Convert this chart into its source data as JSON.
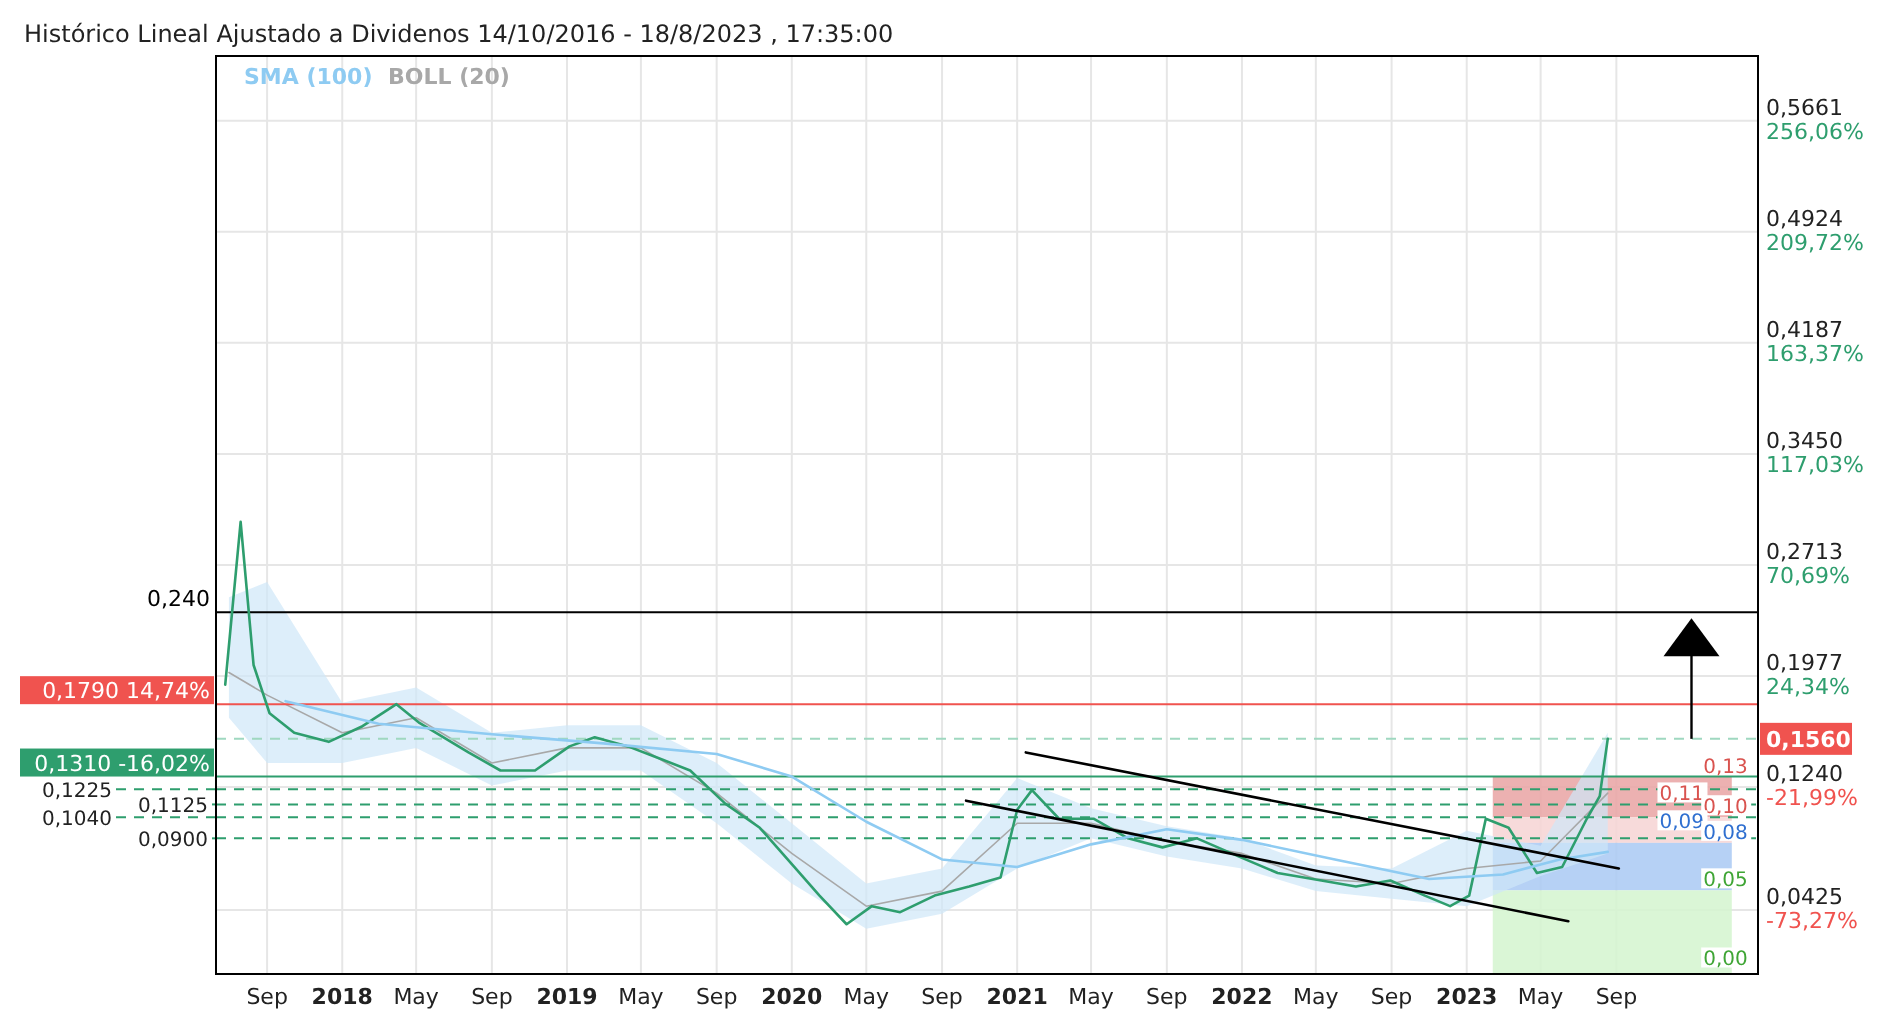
{
  "chart_data": {
    "type": "line",
    "title": "Histórico Lineal Ajustado a Dividenos 14/10/2016 - 18/8/2023 , 17:35:00",
    "legend": "top left",
    "grid": true,
    "xlim": [
      "2017-06-10",
      "2024-04-18"
    ],
    "xticks": [
      {
        "value": "2017-09-01",
        "label": "Sep"
      },
      {
        "value": "2018-01-01",
        "label": "2018"
      },
      {
        "value": "2018-05-01",
        "label": "May"
      },
      {
        "value": "2018-09-01",
        "label": "Sep"
      },
      {
        "value": "2019-01-01",
        "label": "2019"
      },
      {
        "value": "2019-05-01",
        "label": "May"
      },
      {
        "value": "2019-09-01",
        "label": "Sep"
      },
      {
        "value": "2020-01-01",
        "label": "2020"
      },
      {
        "value": "2020-05-01",
        "label": "May"
      },
      {
        "value": "2020-09-01",
        "label": "Sep"
      },
      {
        "value": "2021-01-01",
        "label": "2021"
      },
      {
        "value": "2021-05-01",
        "label": "May"
      },
      {
        "value": "2021-09-01",
        "label": "Sep"
      },
      {
        "value": "2022-01-01",
        "label": "2022"
      },
      {
        "value": "2022-05-01",
        "label": "May"
      },
      {
        "value": "2022-09-01",
        "label": "Sep"
      },
      {
        "value": "2023-01-01",
        "label": "2023"
      },
      {
        "value": "2023-05-01",
        "label": "May"
      },
      {
        "value": "2023-09-01",
        "label": "Sep"
      }
    ],
    "ylim": [
      0,
      0.609
    ],
    "yticks": [
      {
        "value": 0.0425,
        "label": "0,0425"
      },
      {
        "value": 0.124,
        "label": "0,1240"
      },
      {
        "value": 0.1977,
        "label": "0,1977"
      },
      {
        "value": 0.2713,
        "label": "0,2713"
      },
      {
        "value": 0.345,
        "label": "0,3450"
      },
      {
        "value": 0.4187,
        "label": "0,4187"
      },
      {
        "value": 0.4924,
        "label": "0,4924"
      },
      {
        "value": 0.5661,
        "label": "0,5661"
      }
    ],
    "y2lim": [
      -100,
      283.05
    ],
    "y2ticks": [
      {
        "value": -73.27,
        "label": "-73,27%"
      },
      {
        "value": -21.99,
        "label": "-21,99%"
      },
      {
        "value": 24.34,
        "label": "24,34%"
      },
      {
        "value": 70.69,
        "label": "70,69%"
      },
      {
        "value": 117.03,
        "label": "117,03%"
      },
      {
        "value": 163.37,
        "label": "163,37%"
      },
      {
        "value": 209.72,
        "label": "209,72%"
      },
      {
        "value": 256.06,
        "label": "256,06%"
      }
    ],
    "series": [
      {
        "color": "#2e9e6e",
        "x": [
          "2017-06-25",
          "2017-07-20",
          "2017-08-10",
          "2017-09-05",
          "2017-10-15",
          "2017-12-10",
          "2018-02-01",
          "2018-03-30",
          "2018-05-05",
          "2018-07-25",
          "2018-09-15",
          "2018-11-10",
          "2019-01-05",
          "2019-02-15",
          "2019-04-10",
          "2019-05-25",
          "2019-07-20",
          "2019-09-15",
          "2019-11-10",
          "2020-01-05",
          "2020-02-15",
          "2020-03-30",
          "2020-05-10",
          "2020-06-25",
          "2020-08-20",
          "2020-10-15",
          "2020-12-05",
          "2021-01-01",
          "2021-01-25",
          "2021-03-10",
          "2021-05-05",
          "2021-06-30",
          "2021-08-25",
          "2021-10-20",
          "2022-01-01",
          "2022-02-28",
          "2022-05-10",
          "2022-07-05",
          "2022-08-30",
          "2022-10-25",
          "2022-12-05",
          "2023-01-05",
          "2023-02-01",
          "2023-03-10",
          "2023-04-25",
          "2023-06-05",
          "2023-07-15",
          "2023-08-05",
          "2023-08-18"
        ],
        "values": [
          0.192,
          0.3,
          0.205,
          0.173,
          0.16,
          0.154,
          0.164,
          0.179,
          0.167,
          0.147,
          0.135,
          0.135,
          0.151,
          0.157,
          0.151,
          0.144,
          0.135,
          0.113,
          0.097,
          0.071,
          0.052,
          0.033,
          0.045,
          0.041,
          0.052,
          0.058,
          0.064,
          0.109,
          0.122,
          0.103,
          0.103,
          0.09,
          0.084,
          0.09,
          0.077,
          0.067,
          0.062,
          0.058,
          0.062,
          0.052,
          0.045,
          0.052,
          0.103,
          0.097,
          0.067,
          0.071,
          0.103,
          0.118,
          0.156
        ]
      },
      {
        "type": "line",
        "name": "SMA (100)",
        "color": "#8ecbf2",
        "x": [
          "2017-10-01",
          "2018-03-01",
          "2018-09-01",
          "2019-03-01",
          "2019-09-01",
          "2020-01-01",
          "2020-05-01",
          "2020-09-01",
          "2021-01-01",
          "2021-05-01",
          "2021-09-01",
          "2022-01-01",
          "2022-06-01",
          "2022-11-01",
          "2023-03-01",
          "2023-06-01",
          "2023-08-18"
        ],
        "values": [
          0.181,
          0.166,
          0.159,
          0.153,
          0.146,
          0.131,
          0.101,
          0.076,
          0.071,
          0.086,
          0.096,
          0.089,
          0.076,
          0.063,
          0.066,
          0.076,
          0.081
        ]
      },
      {
        "type": "line",
        "name": "BOLL (20)",
        "color": "#a8a8a8",
        "x": [
          "2017-07-01",
          "2017-09-01",
          "2018-01-01",
          "2018-05-01",
          "2018-09-01",
          "2019-01-01",
          "2019-05-01",
          "2019-09-01",
          "2020-01-01",
          "2020-05-01",
          "2020-09-01",
          "2021-01-01",
          "2021-05-01",
          "2021-09-01",
          "2022-01-01",
          "2022-05-01",
          "2022-09-01",
          "2023-01-01",
          "2023-05-01",
          "2023-08-18"
        ],
        "values": [
          0.2,
          0.185,
          0.16,
          0.17,
          0.14,
          0.15,
          0.15,
          0.12,
          0.08,
          0.045,
          0.055,
          0.1,
          0.1,
          0.088,
          0.08,
          0.063,
          0.06,
          0.07,
          0.075,
          0.12
        ],
        "lower": [
          0.17,
          0.14,
          0.14,
          0.15,
          0.125,
          0.135,
          0.135,
          0.1,
          0.06,
          0.03,
          0.04,
          0.07,
          0.09,
          0.078,
          0.07,
          0.055,
          0.05,
          0.045,
          0.065,
          0.08
        ],
        "upper": [
          0.25,
          0.26,
          0.18,
          0.19,
          0.16,
          0.165,
          0.165,
          0.14,
          0.1,
          0.06,
          0.07,
          0.13,
          0.11,
          0.098,
          0.09,
          0.072,
          0.07,
          0.095,
          0.085,
          0.16
        ]
      },
      {
        "type": "line",
        "color": "#000000",
        "x": [
          "2021-01-15",
          "2023-09-05"
        ],
        "values": [
          0.147,
          0.07
        ]
      },
      {
        "type": "line",
        "color": "#000000",
        "x": [
          "2020-10-10",
          "2023-06-15"
        ],
        "values": [
          0.115,
          0.035
        ]
      }
    ],
    "ref_lines": [
      {
        "axis": "y",
        "value": 0.24,
        "label": "0,240",
        "color": "#000000",
        "line_style": "solid"
      },
      {
        "axis": "y",
        "value": 0.179,
        "label": "0,1790  14,74%",
        "color": "#f0534f",
        "line_style": "solid"
      },
      {
        "axis": "y",
        "value": 0.156,
        "label": "0,1560",
        "color": "#9fd8c0",
        "line_style": "dashed"
      },
      {
        "axis": "y",
        "value": 0.131,
        "label": "0,1310  -16,02%",
        "color": "#2e9e6e",
        "line_style": "solid"
      },
      {
        "axis": "y",
        "value": 0.1225,
        "label": "0,1225",
        "color": "#2e9e6e",
        "line_style": "dashed"
      },
      {
        "axis": "y",
        "value": 0.1125,
        "label": "0,1125",
        "color": "#2e9e6e",
        "line_style": "dashed"
      },
      {
        "axis": "y",
        "value": 0.104,
        "label": "0,1040",
        "color": "#2e9e6e",
        "line_style": "dashed"
      },
      {
        "axis": "y",
        "value": 0.09,
        "label": "0,0900",
        "color": "#2e9e6e",
        "line_style": "dashed"
      }
    ],
    "bands": [
      {
        "axis": "y",
        "from": 0.104,
        "to": 0.131,
        "color": "#e9a3a3"
      },
      {
        "axis": "y",
        "from": 0.087,
        "to": 0.104,
        "color": "#f6d3d3"
      },
      {
        "axis": "y",
        "from": 0.0555,
        "to": 0.087,
        "color": "#a9c9f3"
      },
      {
        "axis": "y",
        "from": 0,
        "to": 0.0555,
        "color": "#d3f5cf"
      }
    ],
    "annotations": [
      {
        "text": "0,13",
        "x": "2024-01-20",
        "y": 0.131
      },
      {
        "text": "0,11",
        "x": "2023-11-10",
        "y": 0.1125
      },
      {
        "text": "0,10",
        "x": "2024-01-20",
        "y": 0.104
      },
      {
        "text": "0,09",
        "x": "2023-11-10",
        "y": 0.094
      },
      {
        "text": "0,08",
        "x": "2024-01-20",
        "y": 0.087
      },
      {
        "text": "0,05",
        "x": "2024-01-20",
        "y": 0.0555
      },
      {
        "text": "0,00",
        "x": "2024-01-20",
        "y": 0.003
      }
    ]
  }
}
